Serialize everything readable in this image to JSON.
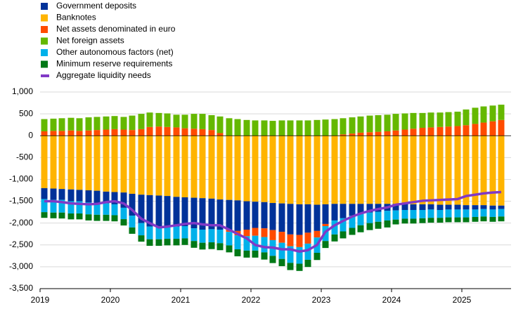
{
  "chart_data": {
    "type": "stacked-bar-line",
    "x": [
      2019.06,
      2019.19,
      2019.31,
      2019.44,
      2019.56,
      2019.69,
      2019.81,
      2019.94,
      2020.06,
      2020.19,
      2020.31,
      2020.44,
      2020.56,
      2020.69,
      2020.81,
      2020.94,
      2021.06,
      2021.19,
      2021.31,
      2021.44,
      2021.56,
      2021.69,
      2021.81,
      2021.94,
      2022.06,
      2022.19,
      2022.31,
      2022.44,
      2022.56,
      2022.69,
      2022.81,
      2022.94,
      2023.06,
      2023.19,
      2023.31,
      2023.44,
      2023.56,
      2023.69,
      2023.81,
      2023.94,
      2024.06,
      2024.19,
      2024.31,
      2024.44,
      2024.56,
      2024.69,
      2024.81,
      2024.94,
      2025.06,
      2025.19,
      2025.31,
      2025.44,
      2025.56
    ],
    "series": [
      {
        "name": "Government deposits",
        "color": "#003299",
        "values": [
          -250,
          -260,
          -250,
          -270,
          -260,
          -280,
          -280,
          -270,
          -280,
          -350,
          -500,
          -650,
          -720,
          -700,
          -690,
          -680,
          -660,
          -700,
          -720,
          -700,
          -690,
          -680,
          -700,
          -650,
          -600,
          -600,
          -620,
          -650,
          -700,
          -700,
          -650,
          -600,
          -450,
          -380,
          -330,
          -270,
          -230,
          -200,
          -180,
          -160,
          -150,
          -140,
          -130,
          -130,
          -120,
          -120,
          -110,
          -110,
          -100,
          -100,
          -90,
          -90,
          -80
        ]
      },
      {
        "name": "Banknotes",
        "color": "#ffb400",
        "values": [
          -1200,
          -1210,
          -1220,
          -1230,
          -1240,
          -1250,
          -1260,
          -1280,
          -1290,
          -1300,
          -1330,
          -1350,
          -1360,
          -1370,
          -1380,
          -1400,
          -1410,
          -1420,
          -1430,
          -1440,
          -1460,
          -1470,
          -1480,
          -1500,
          -1510,
          -1520,
          -1540,
          -1550,
          -1560,
          -1570,
          -1570,
          -1580,
          -1570,
          -1560,
          -1560,
          -1560,
          -1560,
          -1560,
          -1560,
          -1560,
          -1560,
          -1560,
          -1570,
          -1570,
          -1570,
          -1580,
          -1580,
          -1580,
          -1590,
          -1590,
          -1590,
          -1600,
          -1600
        ]
      },
      {
        "name": "Net assets denominated in euro",
        "color": "#ff4b00",
        "values": [
          100,
          110,
          110,
          120,
          110,
          120,
          130,
          140,
          150,
          140,
          130,
          150,
          200,
          210,
          200,
          190,
          170,
          160,
          150,
          130,
          60,
          -50,
          -100,
          -150,
          -180,
          -200,
          -230,
          -250,
          -270,
          -280,
          -250,
          -150,
          -50,
          0,
          30,
          50,
          70,
          80,
          90,
          100,
          120,
          140,
          160,
          180,
          190,
          200,
          210,
          220,
          240,
          270,
          300,
          330,
          360
        ]
      },
      {
        "name": "Net foreign assets",
        "color": "#65b800",
        "values": [
          280,
          280,
          290,
          290,
          290,
          300,
          300,
          300,
          300,
          290,
          330,
          350,
          330,
          310,
          310,
          290,
          310,
          340,
          350,
          340,
          380,
          400,
          380,
          360,
          350,
          350,
          340,
          350,
          350,
          350,
          350,
          360,
          370,
          380,
          370,
          370,
          370,
          380,
          380,
          380,
          380,
          370,
          360,
          340,
          340,
          330,
          330,
          330,
          360,
          370,
          370,
          360,
          350
        ]
      },
      {
        "name": "Other autonomous factors (net)",
        "color": "#00b1ea",
        "values": [
          -300,
          -290,
          -290,
          -280,
          -280,
          -270,
          -270,
          -260,
          -250,
          -260,
          -270,
          -280,
          -290,
          -300,
          -290,
          -280,
          -280,
          -290,
          -300,
          -300,
          -310,
          -310,
          -320,
          -330,
          -340,
          -350,
          -360,
          -370,
          -380,
          -380,
          -370,
          -350,
          -340,
          -320,
          -300,
          -280,
          -260,
          -240,
          -230,
          -220,
          -210,
          -200,
          -200,
          -190,
          -190,
          -180,
          -180,
          -180,
          -180,
          -170,
          -170,
          -170,
          -170
        ]
      },
      {
        "name": "Minimum reserve requirements",
        "color": "#007816",
        "values": [
          -130,
          -130,
          -135,
          -135,
          -135,
          -140,
          -140,
          -140,
          -140,
          -145,
          -145,
          -145,
          -150,
          -150,
          -150,
          -150,
          -150,
          -155,
          -155,
          -155,
          -160,
          -160,
          -160,
          -160,
          -160,
          -165,
          -165,
          -165,
          -165,
          -165,
          -165,
          -165,
          -160,
          -160,
          -160,
          -160,
          -160,
          -160,
          -160,
          -160,
          -110,
          -110,
          -110,
          -110,
          -110,
          -110,
          -110,
          -110,
          -110,
          -110,
          -110,
          -110,
          -110
        ]
      },
      {
        "name": "Aggregate liquidity needs",
        "color": "#8139c6",
        "type": "line",
        "values": [
          -1500,
          -1500,
          -1520,
          -1550,
          -1560,
          -1570,
          -1560,
          -1520,
          -1500,
          -1550,
          -1700,
          -1900,
          -2000,
          -2100,
          -2080,
          -2050,
          -2020,
          -2000,
          -2030,
          -2050,
          -2050,
          -2150,
          -2250,
          -2350,
          -2500,
          -2550,
          -2560,
          -2600,
          -2600,
          -2650,
          -2620,
          -2500,
          -2200,
          -2050,
          -1950,
          -1850,
          -1780,
          -1720,
          -1680,
          -1640,
          -1580,
          -1550,
          -1520,
          -1490,
          -1480,
          -1470,
          -1460,
          -1450,
          -1380,
          -1350,
          -1320,
          -1300,
          -1290
        ]
      }
    ],
    "xlim": [
      2019,
      2025.7
    ],
    "xticks": [
      2019,
      2020,
      2021,
      2022,
      2023,
      2024,
      2025
    ],
    "ylim": [
      -3500,
      1000
    ],
    "yticks": [
      {
        "value": 1000,
        "label": "1,000"
      },
      500,
      0,
      -500,
      {
        "value": -1000,
        "label": "-1,000"
      },
      {
        "value": -1500,
        "label": "-1,500"
      },
      {
        "value": -2000,
        "label": "-2,000"
      },
      {
        "value": -2500,
        "label": "-2,500"
      },
      {
        "value": -3000,
        "label": "-3,000"
      },
      {
        "value": -3500,
        "label": "-3,500"
      }
    ],
    "grid": true,
    "legend": "top-left"
  }
}
